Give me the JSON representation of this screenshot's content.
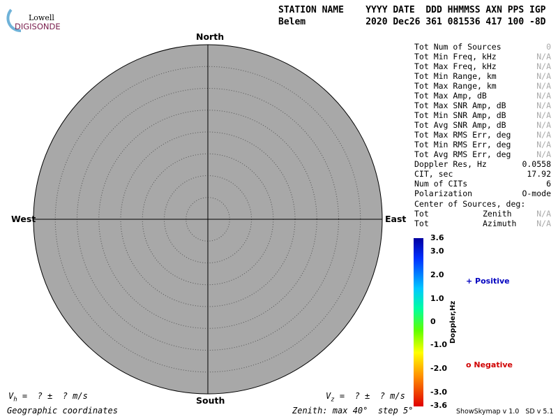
{
  "logo": {
    "top": "Lowell",
    "bottom": "DIGISONDE"
  },
  "header": {
    "labels": "STATION NAME    YYYY DATE  DDD HHMMSS AXN PPS IGP",
    "values": "Belem           2020 Dec26 361 081536 417 100 -8D"
  },
  "compass": {
    "north": "North",
    "south": "South",
    "west": "West",
    "east": "East"
  },
  "stats": [
    [
      "Tot Num of Sources",
      "0"
    ],
    [
      "Tot Min Freq, kHz",
      "N/A"
    ],
    [
      "Tot Max Freq, kHz",
      "N/A"
    ],
    [
      "Tot Min Range, km",
      "N/A"
    ],
    [
      "Tot Max Range, km",
      "N/A"
    ],
    [
      "Tot Max Amp, dB",
      "N/A"
    ],
    [
      "Tot Max SNR Amp, dB",
      "N/A"
    ],
    [
      "Tot Min SNR Amp, dB",
      "N/A"
    ],
    [
      "Tot Avg SNR Amp, dB",
      "N/A"
    ],
    [
      "Tot Max RMS Err, deg",
      "N/A"
    ],
    [
      "Tot Min RMS Err, deg",
      "N/A"
    ],
    [
      "Tot Avg RMS Err, deg",
      "N/A"
    ],
    [
      "Doppler Res, Hz",
      "0.0558"
    ],
    [
      "CIT, sec",
      "17.92"
    ],
    [
      "Num of CITs",
      "6"
    ],
    [
      "Polarization",
      "O-mode"
    ]
  ],
  "center": {
    "heading": "Center of Sources, deg:",
    "rows": [
      [
        "Tot",
        "Zenith",
        "N/A"
      ],
      [
        "Tot",
        "Azimuth",
        "N/A"
      ]
    ]
  },
  "colorbar": {
    "label": "Doppler,Hz",
    "ticks": [
      "3.6",
      "3.0",
      "2.0",
      "1.0",
      "0",
      "-1.0",
      "-2.0",
      "-3.0",
      "-3.6"
    ]
  },
  "legend": {
    "positive": "+ Positive",
    "negative": "o Negative"
  },
  "footer": {
    "vh": {
      "symbol": "V",
      "sub": "h",
      "text": "=  ? ±  ? m/s"
    },
    "vz": {
      "symbol": "V",
      "sub": "z",
      "text": "=  ? ±  ? m/s"
    },
    "coordinates": "Geographic coordinates",
    "zenith": "Zenith: max 40°  step 5°",
    "version": "ShowSkymap v 1.0   SD v 5.1"
  }
}
